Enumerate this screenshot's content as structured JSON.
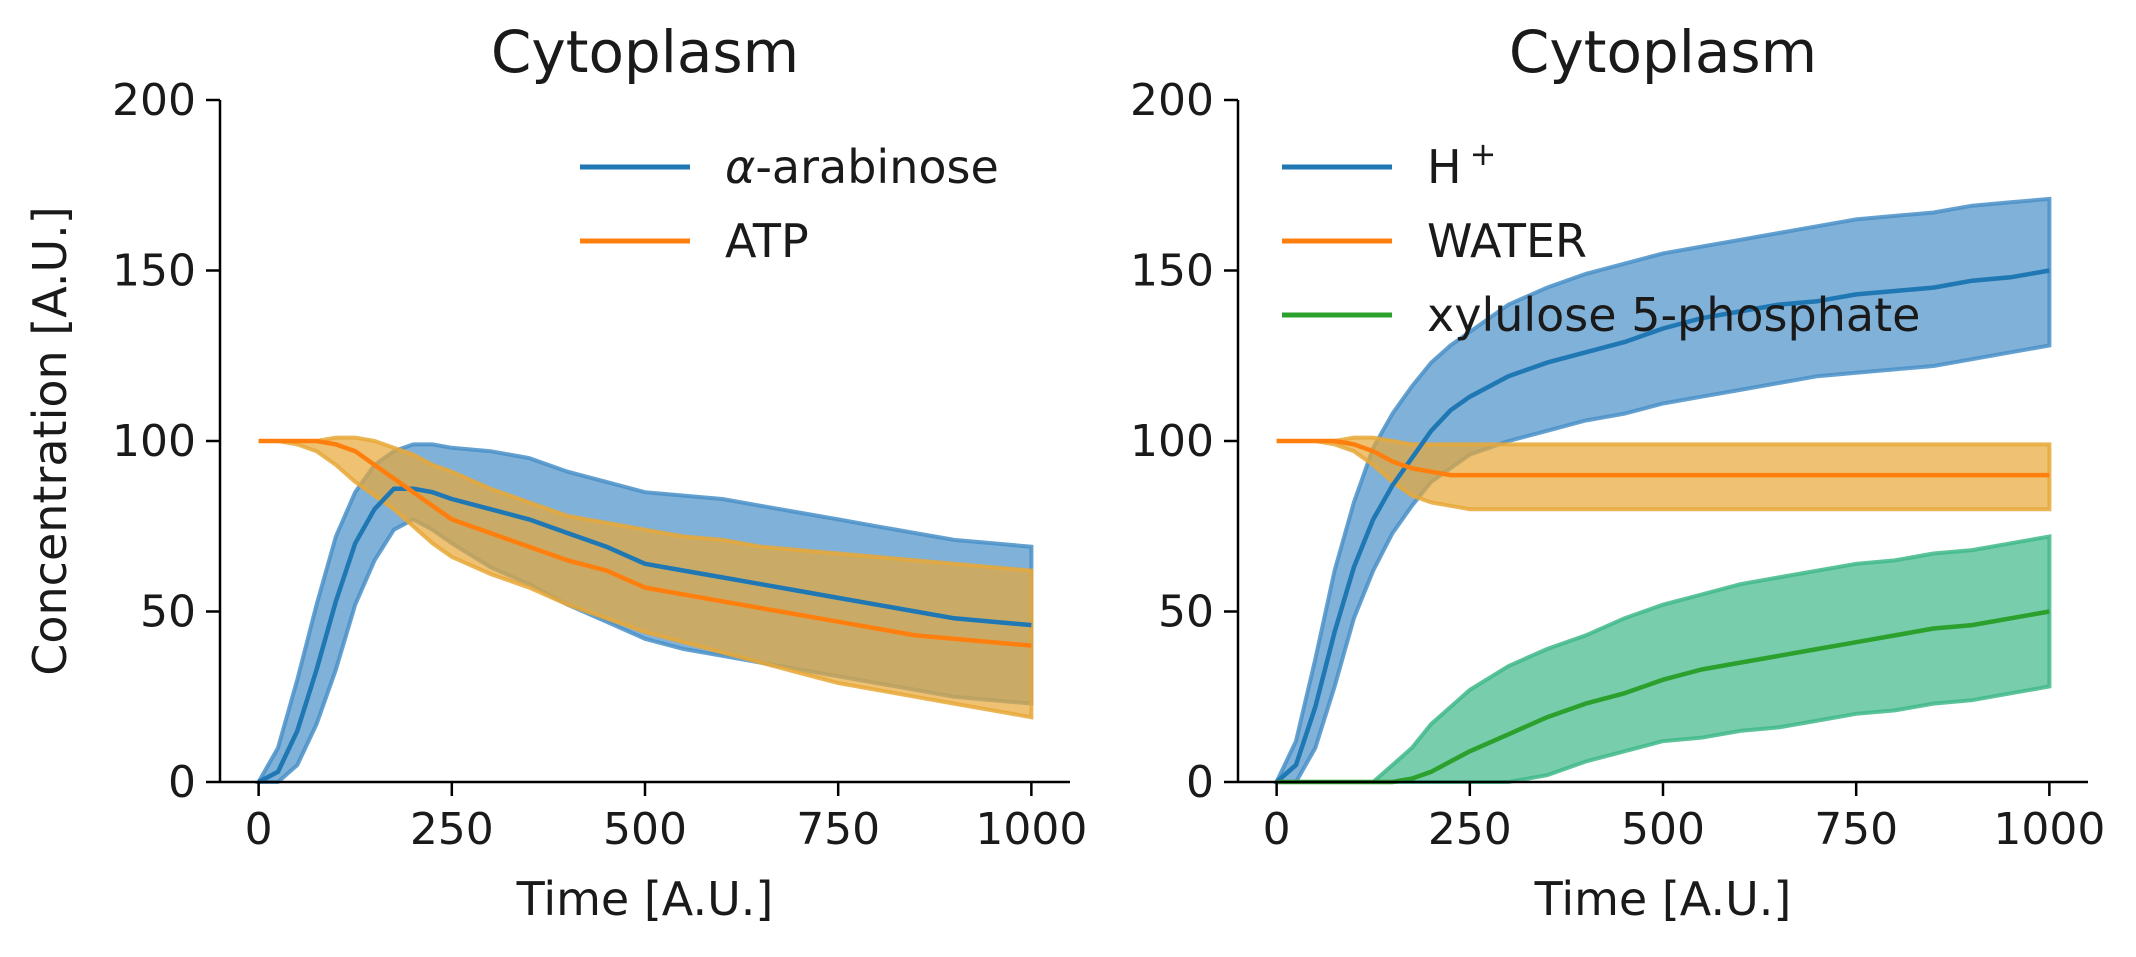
{
  "chart_data": [
    {
      "type": "line",
      "title": "Cytoplasm",
      "xlabel": "Time [A.U.]",
      "ylabel": "Concentration [A.U.]",
      "xlim": [
        -50,
        1050
      ],
      "ylim": [
        0,
        200
      ],
      "xticks": [
        0,
        250,
        500,
        750,
        1000
      ],
      "yticks": [
        0,
        50,
        100,
        150,
        200
      ],
      "x": [
        0,
        25,
        50,
        75,
        100,
        125,
        150,
        175,
        200,
        225,
        250,
        300,
        350,
        400,
        450,
        500,
        550,
        600,
        650,
        700,
        750,
        800,
        850,
        900,
        950,
        1000
      ],
      "legend_position": "top-right",
      "grid": false,
      "series": [
        {
          "name": "α-arabinose",
          "color": "#1f77b4",
          "band_color": "#4a90c8",
          "values": [
            0,
            3,
            15,
            33,
            53,
            70,
            80,
            86,
            86,
            85,
            83,
            80,
            77,
            73,
            69,
            64,
            62,
            60,
            58,
            56,
            54,
            52,
            50,
            48,
            47,
            46
          ],
          "upper": [
            0,
            10,
            30,
            52,
            72,
            85,
            93,
            97,
            99,
            99,
            98,
            97,
            95,
            91,
            88,
            85,
            84,
            83,
            81,
            79,
            77,
            75,
            73,
            71,
            70,
            69
          ],
          "lower": [
            0,
            0,
            5,
            17,
            33,
            52,
            65,
            74,
            77,
            74,
            70,
            63,
            58,
            52,
            47,
            42,
            39,
            37,
            35,
            33,
            31,
            29,
            27,
            25,
            24,
            23
          ]
        },
        {
          "name": "ATP",
          "color": "#ff7f0e",
          "band_color": "#e8a838",
          "values": [
            100,
            100,
            100,
            100,
            99,
            97,
            93,
            89,
            85,
            81,
            77,
            73,
            69,
            65,
            62,
            57,
            55,
            53,
            51,
            49,
            47,
            45,
            43,
            42,
            41,
            40
          ],
          "upper": [
            100,
            100,
            100,
            100,
            101,
            101,
            100,
            98,
            96,
            93,
            91,
            86,
            82,
            78,
            76,
            74,
            72,
            71,
            69,
            68,
            67,
            66,
            65,
            64,
            63,
            62
          ],
          "lower": [
            100,
            100,
            99,
            97,
            93,
            88,
            84,
            80,
            75,
            70,
            66,
            61,
            57,
            52,
            48,
            44,
            41,
            38,
            35,
            32,
            29,
            27,
            25,
            23,
            21,
            19
          ]
        }
      ]
    },
    {
      "type": "line",
      "title": "Cytoplasm",
      "xlabel": "Time [A.U.]",
      "ylabel": "",
      "xlim": [
        -50,
        1050
      ],
      "ylim": [
        0,
        200
      ],
      "xticks": [
        0,
        250,
        500,
        750,
        1000
      ],
      "yticks": [
        0,
        50,
        100,
        150,
        200
      ],
      "x": [
        0,
        25,
        50,
        75,
        100,
        125,
        150,
        175,
        200,
        225,
        250,
        300,
        350,
        400,
        450,
        500,
        550,
        600,
        650,
        700,
        750,
        800,
        850,
        900,
        950,
        1000
      ],
      "legend_position": "top-left",
      "grid": false,
      "series": [
        {
          "name": "H",
          "name_superscript": "+",
          "color": "#1f77b4",
          "band_color": "#4a90c8",
          "values": [
            0,
            5,
            22,
            44,
            63,
            77,
            87,
            95,
            103,
            109,
            113,
            119,
            123,
            126,
            129,
            133,
            136,
            138,
            140,
            141,
            143,
            144,
            145,
            147,
            148,
            150
          ],
          "upper": [
            0,
            12,
            36,
            62,
            82,
            98,
            108,
            116,
            123,
            128,
            132,
            140,
            145,
            149,
            152,
            155,
            157,
            159,
            161,
            163,
            165,
            166,
            167,
            169,
            170,
            171
          ],
          "lower": [
            0,
            0,
            10,
            28,
            48,
            62,
            73,
            81,
            88,
            92,
            96,
            100,
            103,
            106,
            108,
            111,
            113,
            115,
            117,
            119,
            120,
            121,
            122,
            124,
            126,
            128
          ]
        },
        {
          "name": "WATER",
          "color": "#ff7f0e",
          "band_color": "#e8a838",
          "values": [
            100,
            100,
            100,
            100,
            99,
            97,
            94,
            92,
            91,
            90,
            90,
            90,
            90,
            90,
            90,
            90,
            90,
            90,
            90,
            90,
            90,
            90,
            90,
            90,
            90,
            90
          ],
          "upper": [
            100,
            100,
            100,
            100,
            101,
            101,
            100,
            99,
            99,
            99,
            99,
            99,
            99,
            99,
            99,
            99,
            99,
            99,
            99,
            99,
            99,
            99,
            99,
            99,
            99,
            99
          ],
          "lower": [
            100,
            100,
            100,
            99,
            97,
            93,
            88,
            84,
            82,
            81,
            80,
            80,
            80,
            80,
            80,
            80,
            80,
            80,
            80,
            80,
            80,
            80,
            80,
            80,
            80,
            80
          ]
        },
        {
          "name": "xylulose 5-phosphate",
          "color": "#2ca02c",
          "band_color": "#3fb88a",
          "values": [
            0,
            0,
            0,
            0,
            0,
            0,
            0,
            1,
            3,
            6,
            9,
            14,
            19,
            23,
            26,
            30,
            33,
            35,
            37,
            39,
            41,
            43,
            45,
            46,
            48,
            50
          ],
          "upper": [
            0,
            0,
            0,
            0,
            0,
            0,
            5,
            10,
            17,
            22,
            27,
            34,
            39,
            43,
            48,
            52,
            55,
            58,
            60,
            62,
            64,
            65,
            67,
            68,
            70,
            72
          ],
          "lower": [
            0,
            0,
            0,
            0,
            0,
            0,
            0,
            0,
            0,
            0,
            0,
            0,
            2,
            6,
            9,
            12,
            13,
            15,
            16,
            18,
            20,
            21,
            23,
            24,
            26,
            28
          ]
        }
      ]
    }
  ]
}
